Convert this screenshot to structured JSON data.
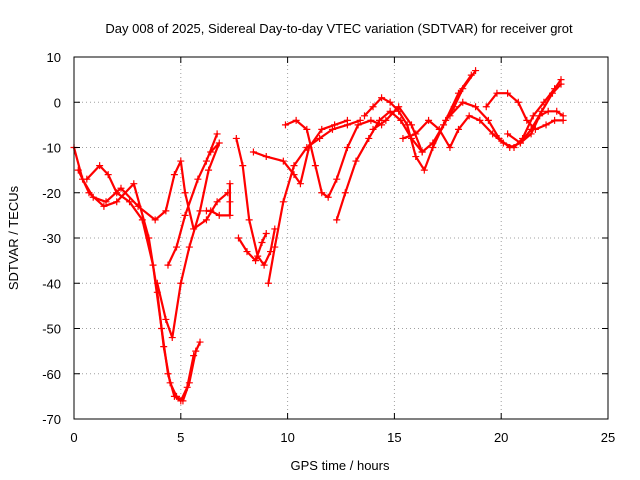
{
  "chart_data": {
    "type": "scatter",
    "title": "Day 008 of 2025, Sidereal Day-to-day VTEC variation (SDTVAR) for receiver grot",
    "xlabel": "GPS time / hours",
    "ylabel": "SDTVAR / TECUs",
    "xlim": [
      0,
      25
    ],
    "ylim": [
      -70,
      10
    ],
    "xticks": [
      "0",
      "5",
      "10",
      "15",
      "20",
      "25"
    ],
    "yticks": [
      "10",
      "0",
      "-10",
      "-20",
      "-30",
      "-40",
      "-50",
      "-60",
      "-70"
    ],
    "grid": true,
    "marker": "+",
    "color": "#ff0000",
    "series": [
      {
        "points": [
          [
            0.0,
            -10
          ],
          [
            0.4,
            -17
          ],
          [
            0.9,
            -21
          ],
          [
            1.5,
            -22
          ],
          [
            2.2,
            -19
          ],
          [
            3.0,
            -23
          ],
          [
            3.8,
            -26
          ],
          [
            4.3,
            -24
          ],
          [
            4.7,
            -16
          ],
          [
            5.0,
            -13
          ],
          [
            5.2,
            -20
          ],
          [
            5.6,
            -28
          ],
          [
            6.2,
            -26
          ],
          [
            6.7,
            -22
          ],
          [
            7.2,
            -20
          ]
        ]
      },
      {
        "points": [
          [
            0.2,
            -15
          ],
          [
            0.7,
            -20
          ],
          [
            1.4,
            -23
          ],
          [
            2.0,
            -22
          ],
          [
            2.8,
            -18
          ],
          [
            3.5,
            -30
          ],
          [
            3.9,
            -42
          ],
          [
            4.2,
            -54
          ],
          [
            4.5,
            -62
          ],
          [
            4.8,
            -65
          ],
          [
            5.1,
            -66
          ],
          [
            5.4,
            -62
          ],
          [
            5.7,
            -55
          ],
          [
            5.9,
            -53
          ]
        ]
      },
      {
        "points": [
          [
            0.6,
            -17
          ],
          [
            1.2,
            -14
          ],
          [
            1.6,
            -16
          ],
          [
            2.0,
            -20
          ],
          [
            2.6,
            -22
          ],
          [
            3.2,
            -26
          ],
          [
            3.7,
            -36
          ],
          [
            4.1,
            -50
          ],
          [
            4.4,
            -60
          ],
          [
            4.7,
            -65
          ],
          [
            5.0,
            -66
          ],
          [
            5.3,
            -63
          ],
          [
            5.6,
            -56
          ]
        ]
      },
      {
        "points": [
          [
            3.9,
            -40
          ],
          [
            4.3,
            -48
          ],
          [
            4.6,
            -52
          ],
          [
            5.0,
            -40
          ],
          [
            5.4,
            -32
          ],
          [
            5.9,
            -24
          ],
          [
            6.3,
            -15
          ],
          [
            6.8,
            -9
          ],
          [
            6.4,
            -11
          ]
        ]
      },
      {
        "points": [
          [
            4.4,
            -36
          ],
          [
            4.8,
            -32
          ],
          [
            5.2,
            -25
          ],
          [
            5.8,
            -17
          ],
          [
            6.2,
            -13
          ],
          [
            6.7,
            -7
          ]
        ]
      },
      {
        "points": [
          [
            7.6,
            -8
          ],
          [
            7.9,
            -14
          ],
          [
            8.2,
            -26
          ],
          [
            8.6,
            -34
          ],
          [
            8.9,
            -36
          ],
          [
            9.2,
            -33
          ],
          [
            9.4,
            -28
          ]
        ]
      },
      {
        "points": [
          [
            7.7,
            -30
          ],
          [
            8.1,
            -33
          ],
          [
            8.5,
            -35
          ],
          [
            8.8,
            -31
          ],
          [
            9.0,
            -29
          ]
        ]
      },
      {
        "points": [
          [
            8.4,
            -11
          ],
          [
            9.0,
            -12
          ],
          [
            9.8,
            -13
          ],
          [
            10.3,
            -16
          ],
          [
            10.6,
            -18
          ],
          [
            11.0,
            -10
          ],
          [
            11.6,
            -6
          ],
          [
            12.2,
            -5
          ],
          [
            12.8,
            -4
          ]
        ]
      },
      {
        "points": [
          [
            9.1,
            -40
          ],
          [
            9.4,
            -32
          ],
          [
            9.8,
            -22
          ],
          [
            10.3,
            -14
          ],
          [
            10.9,
            -10
          ],
          [
            11.5,
            -8
          ],
          [
            12.1,
            -6
          ],
          [
            12.8,
            -5
          ],
          [
            13.4,
            -4
          ]
        ]
      },
      {
        "points": [
          [
            9.9,
            -5
          ],
          [
            10.4,
            -4
          ],
          [
            10.9,
            -6
          ],
          [
            11.3,
            -14
          ],
          [
            11.6,
            -20
          ],
          [
            11.9,
            -21
          ],
          [
            12.3,
            -17
          ],
          [
            12.8,
            -10
          ],
          [
            13.3,
            -5
          ],
          [
            13.9,
            -4
          ],
          [
            14.4,
            -5
          ]
        ]
      },
      {
        "points": [
          [
            12.3,
            -26
          ],
          [
            12.7,
            -20
          ],
          [
            13.2,
            -13
          ],
          [
            13.8,
            -8
          ],
          [
            14.3,
            -4
          ],
          [
            14.8,
            -2
          ],
          [
            15.3,
            -4
          ],
          [
            15.8,
            -8
          ],
          [
            16.3,
            -11
          ]
        ]
      },
      {
        "points": [
          [
            13.6,
            -3
          ],
          [
            14.0,
            -1
          ],
          [
            14.4,
            1
          ],
          [
            14.8,
            0
          ],
          [
            15.2,
            -2
          ],
          [
            15.6,
            -5
          ],
          [
            16.0,
            -12
          ],
          [
            16.4,
            -15
          ],
          [
            16.8,
            -10
          ],
          [
            17.4,
            -4
          ],
          [
            18.0,
            2
          ],
          [
            18.6,
            6
          ]
        ]
      },
      {
        "points": [
          [
            14.0,
            -6
          ],
          [
            14.6,
            -4
          ],
          [
            15.2,
            -1
          ],
          [
            15.8,
            -5
          ],
          [
            16.3,
            -11
          ],
          [
            16.8,
            -9
          ],
          [
            17.3,
            -5
          ],
          [
            17.8,
            -1
          ],
          [
            18.2,
            3
          ],
          [
            18.8,
            7
          ]
        ]
      },
      {
        "points": [
          [
            15.4,
            -8
          ],
          [
            16.0,
            -7
          ],
          [
            16.6,
            -4
          ],
          [
            17.1,
            -6
          ],
          [
            17.6,
            -10
          ],
          [
            18.0,
            -6
          ],
          [
            18.5,
            -3
          ],
          [
            19.0,
            -4
          ],
          [
            19.6,
            -7
          ],
          [
            20.1,
            -9
          ],
          [
            20.6,
            -10
          ],
          [
            21.0,
            -8
          ],
          [
            21.5,
            -3
          ],
          [
            22.0,
            0
          ],
          [
            22.5,
            3
          ],
          [
            22.8,
            5
          ]
        ]
      },
      {
        "points": [
          [
            17.6,
            -3
          ],
          [
            18.2,
            0
          ],
          [
            18.8,
            -1
          ],
          [
            19.4,
            -4
          ],
          [
            19.9,
            -8
          ],
          [
            20.4,
            -10
          ],
          [
            20.9,
            -9
          ],
          [
            21.4,
            -6
          ],
          [
            21.9,
            -2
          ],
          [
            22.4,
            2
          ],
          [
            22.8,
            4
          ]
        ]
      },
      {
        "points": [
          [
            19.3,
            -1
          ],
          [
            19.8,
            2
          ],
          [
            20.3,
            2
          ],
          [
            20.8,
            0
          ],
          [
            21.2,
            -4
          ],
          [
            21.6,
            -6
          ],
          [
            22.1,
            -5
          ],
          [
            22.5,
            -4
          ],
          [
            22.9,
            -4
          ]
        ]
      },
      {
        "points": [
          [
            20.3,
            -7
          ],
          [
            20.9,
            -9
          ],
          [
            21.4,
            -7
          ],
          [
            21.8,
            -3
          ],
          [
            22.2,
            -2
          ],
          [
            22.6,
            -2
          ],
          [
            22.9,
            -3
          ]
        ]
      },
      {
        "points": [
          [
            7.3,
            -18
          ],
          [
            7.3,
            -22
          ],
          [
            7.3,
            -25
          ],
          [
            6.8,
            -25
          ],
          [
            6.4,
            -24
          ],
          [
            6.2,
            -24
          ]
        ]
      }
    ]
  }
}
